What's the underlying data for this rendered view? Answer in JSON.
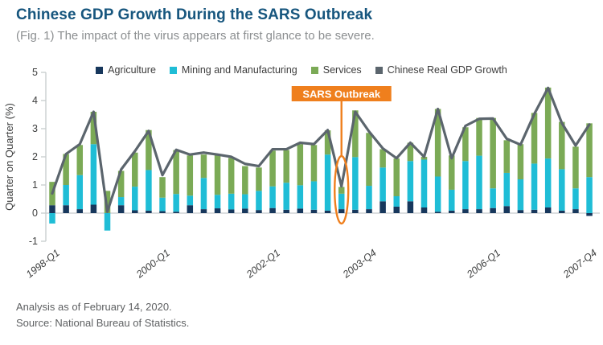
{
  "header": {
    "title": "Chinese GDP Growth During the SARS Outbreak",
    "subtitle": "(Fig. 1) The impact of the virus appears at first glance to be severe."
  },
  "legend": [
    {
      "label": "Agriculture",
      "color": "#17375C"
    },
    {
      "label": "Mining and Manufacturing",
      "color": "#1FBDD6"
    },
    {
      "label": "Services",
      "color": "#7BAA56"
    },
    {
      "label": "Chinese Real GDP Growth",
      "color": "#5B656D"
    }
  ],
  "annotation": {
    "label": "SARS Outbreak",
    "color": "#EF7F1D",
    "text_color": "#FFFFFF",
    "target_category": "2003-Q2",
    "target_index": 21
  },
  "y_axis": {
    "title": "Quarter on Quarter (%)",
    "ticks": [
      "5",
      "4",
      "3",
      "2",
      "1",
      "0",
      "-1"
    ],
    "min": -1,
    "max": 5
  },
  "x_axis": {
    "ticks": [
      {
        "index": 0,
        "label": "1998-Q1"
      },
      {
        "index": 8,
        "label": "2000-Q1"
      },
      {
        "index": 16,
        "label": "2002-Q1"
      },
      {
        "index": 23,
        "label": "2003-Q4"
      },
      {
        "index": 32,
        "label": "2006-Q1"
      },
      {
        "index": 39,
        "label": "2007-Q4"
      }
    ]
  },
  "chart_data": {
    "type": "bar",
    "subtype": "stacked-bars-with-line-overlay",
    "title": "Chinese GDP Growth During the SARS Outbreak",
    "xlabel": "",
    "ylabel": "Quarter on Quarter (%)",
    "ylim": [
      -1,
      5
    ],
    "grid": false,
    "legend_position": "top-center",
    "categories": [
      "1998-Q1",
      "1998-Q2",
      "1998-Q3",
      "1998-Q4",
      "1999-Q1",
      "1999-Q2",
      "1999-Q3",
      "1999-Q4",
      "2000-Q1",
      "2000-Q2",
      "2000-Q3",
      "2000-Q4",
      "2001-Q1",
      "2001-Q2",
      "2001-Q3",
      "2001-Q4",
      "2002-Q1",
      "2002-Q2",
      "2002-Q3",
      "2002-Q4",
      "2003-Q1",
      "2003-Q2",
      "2003-Q3",
      "2003-Q4",
      "2004-Q1",
      "2004-Q2",
      "2004-Q3",
      "2004-Q4",
      "2005-Q1",
      "2005-Q2",
      "2005-Q3",
      "2005-Q4",
      "2006-Q1",
      "2006-Q2",
      "2006-Q3",
      "2006-Q4",
      "2007-Q1",
      "2007-Q2",
      "2007-Q3",
      "2007-Q4"
    ],
    "series": [
      {
        "name": "Agriculture",
        "type": "bar",
        "color": "#17375C",
        "values": [
          0.28,
          0.28,
          0.14,
          0.3,
          0.0,
          0.28,
          0.1,
          0.09,
          0.07,
          0.05,
          0.28,
          0.14,
          0.17,
          0.13,
          0.16,
          0.11,
          0.18,
          0.12,
          0.16,
          0.12,
          0.09,
          0.14,
          0.12,
          0.14,
          0.42,
          0.23,
          0.42,
          0.2,
          0.05,
          0.09,
          0.14,
          0.14,
          0.18,
          0.25,
          0.11,
          0.12,
          0.2,
          0.09,
          0.14,
          -0.1
        ]
      },
      {
        "name": "Mining and Manufacturing",
        "type": "bar",
        "color": "#1FBDD6",
        "values": [
          -0.37,
          0.72,
          1.21,
          2.15,
          -0.62,
          0.29,
          0.84,
          1.44,
          0.48,
          0.63,
          0.34,
          1.11,
          0.48,
          0.56,
          0.51,
          0.68,
          0.77,
          0.96,
          0.83,
          1.01,
          1.99,
          0.55,
          1.87,
          0.83,
          1.2,
          0.37,
          1.43,
          1.7,
          1.25,
          0.74,
          1.71,
          1.9,
          0.7,
          1.18,
          1.09,
          1.64,
          1.74,
          1.47,
          0.74,
          1.28
        ]
      },
      {
        "name": "Services",
        "type": "bar",
        "color": "#7BAA56",
        "values": [
          0.83,
          1.1,
          1.07,
          1.15,
          0.79,
          0.93,
          1.21,
          1.42,
          0.73,
          1.56,
          1.43,
          0.83,
          1.41,
          1.27,
          1.0,
          0.83,
          1.27,
          1.16,
          1.46,
          1.29,
          0.86,
          0.24,
          1.66,
          1.88,
          0.65,
          1.34,
          0.65,
          0.1,
          2.4,
          1.22,
          1.2,
          1.34,
          2.5,
          1.16,
          1.25,
          1.8,
          2.52,
          1.68,
          1.48,
          1.91
        ]
      },
      {
        "name": "Chinese Real GDP Growth",
        "type": "line",
        "color": "#5B656D",
        "values": [
          0.7,
          2.1,
          2.45,
          3.6,
          0.05,
          1.55,
          2.2,
          2.92,
          1.35,
          2.25,
          2.08,
          2.15,
          2.08,
          2.0,
          1.75,
          1.67,
          2.27,
          2.27,
          2.5,
          2.45,
          2.95,
          0.95,
          3.6,
          2.9,
          2.3,
          1.95,
          2.5,
          2.0,
          3.7,
          1.95,
          3.1,
          3.35,
          3.36,
          2.64,
          2.43,
          3.52,
          4.45,
          3.2,
          2.4,
          3.15
        ]
      }
    ]
  },
  "footer": {
    "line1": "Analysis as of February 14, 2020.",
    "line2": "Source: National Bureau of Statistics."
  }
}
